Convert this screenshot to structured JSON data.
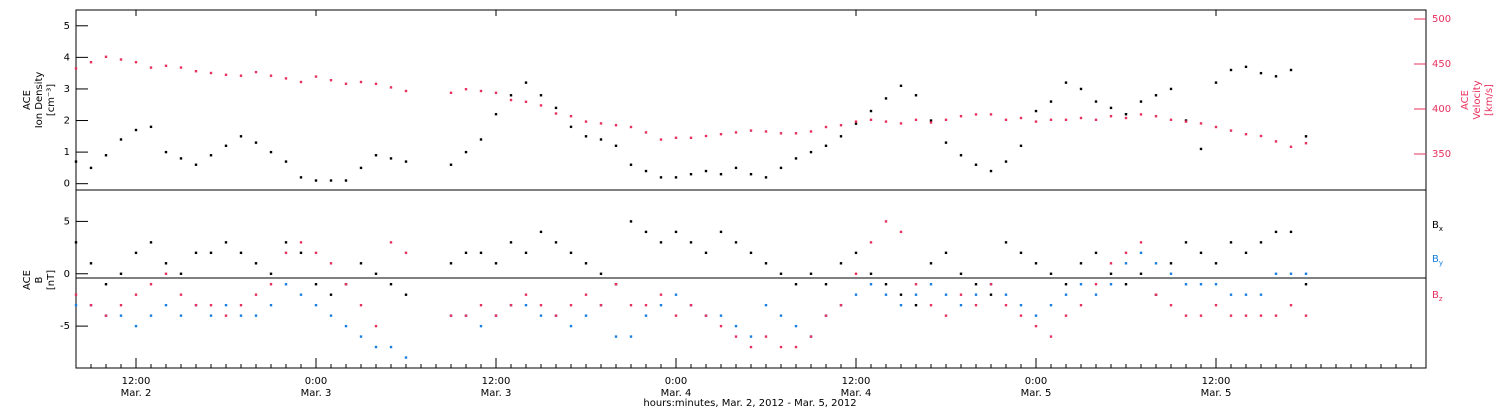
{
  "chart_data": [
    {
      "type": "scatter",
      "panel": "top",
      "ylabel_left": [
        "ACE",
        "Ion Density",
        "[cm⁻³]"
      ],
      "ylabel_right": [
        "ACE",
        "Velocity",
        "[km/s]"
      ],
      "left_ticks": [
        "0",
        "1",
        "2",
        "3",
        "4",
        "5"
      ],
      "right_ticks": [
        "350",
        "400",
        "450",
        "500"
      ],
      "ylim_left": [
        -0.2,
        5.5
      ],
      "ylim_right": [
        310,
        510
      ],
      "colors": {
        "density": "#000000",
        "velocity": "#e8305e"
      },
      "series": [
        {
          "name": "",
          "axis": "left",
          "color": "#000000",
          "x_hours": [
            0,
            1,
            2,
            3,
            4,
            5,
            6,
            7,
            8,
            9,
            10,
            11,
            12,
            13,
            14,
            15,
            16,
            17,
            18,
            19,
            20,
            21,
            22,
            23,
            24,
            25,
            26,
            27,
            28,
            29,
            30,
            31,
            32,
            33,
            34,
            35,
            36,
            37,
            38,
            39,
            40,
            41,
            42,
            43,
            44,
            45,
            46,
            47,
            48,
            49,
            50,
            51,
            52,
            53,
            54,
            55,
            56,
            57,
            58,
            59,
            60,
            61,
            62,
            63,
            64,
            65,
            66,
            67,
            68,
            69,
            70,
            71,
            72,
            73,
            74,
            75,
            76,
            77,
            78,
            79,
            80,
            81,
            82
          ],
          "values": [
            0.7,
            0.5,
            0.9,
            1.4,
            1.7,
            1.8,
            1.0,
            0.8,
            0.6,
            0.9,
            1.2,
            1.5,
            1.3,
            1.0,
            0.7,
            0.2,
            0.1,
            0.1,
            0.1,
            0.5,
            0.9,
            0.8,
            0.7,
            null,
            null,
            0.6,
            1.0,
            1.4,
            2.2,
            2.8,
            3.2,
            2.8,
            2.4,
            1.8,
            1.5,
            1.4,
            1.2,
            0.6,
            0.4,
            0.2,
            0.2,
            0.3,
            0.4,
            0.3,
            0.5,
            0.3,
            0.2,
            0.5,
            0.8,
            1.0,
            1.2,
            1.5,
            1.9,
            2.3,
            2.7,
            3.1,
            2.8,
            2.0,
            1.3,
            0.9,
            0.6,
            0.4,
            0.7,
            1.2,
            2.3,
            2.6,
            3.2,
            3.0,
            2.6,
            2.4,
            2.2,
            2.6,
            2.8,
            3.0,
            2.0,
            1.1,
            3.2,
            3.6,
            3.7,
            3.5,
            3.4,
            3.6,
            1.5
          ]
        },
        {
          "name": "",
          "axis": "right",
          "color": "#e8305e",
          "x_hours": [
            0,
            1,
            2,
            3,
            4,
            5,
            6,
            7,
            8,
            9,
            10,
            11,
            12,
            13,
            14,
            15,
            16,
            17,
            18,
            19,
            20,
            21,
            22,
            23,
            24,
            25,
            26,
            27,
            28,
            29,
            30,
            31,
            32,
            33,
            34,
            35,
            36,
            37,
            38,
            39,
            40,
            41,
            42,
            43,
            44,
            45,
            46,
            47,
            48,
            49,
            50,
            51,
            52,
            53,
            54,
            55,
            56,
            57,
            58,
            59,
            60,
            61,
            62,
            63,
            64,
            65,
            66,
            67,
            68,
            69,
            70,
            71,
            72,
            73,
            74,
            75,
            76,
            77,
            78,
            79,
            80,
            81,
            82
          ],
          "values": [
            445,
            452,
            458,
            455,
            452,
            446,
            448,
            446,
            442,
            440,
            438,
            437,
            441,
            437,
            434,
            430,
            436,
            432,
            428,
            430,
            428,
            424,
            420,
            null,
            null,
            418,
            422,
            420,
            418,
            410,
            408,
            404,
            395,
            392,
            386,
            384,
            382,
            380,
            374,
            366,
            368,
            368,
            370,
            372,
            374,
            376,
            375,
            373,
            373,
            375,
            380,
            382,
            386,
            388,
            386,
            384,
            388,
            385,
            388,
            392,
            394,
            394,
            388,
            390,
            386,
            388,
            388,
            390,
            388,
            392,
            390,
            394,
            392,
            388,
            386,
            384,
            380,
            376,
            372,
            370,
            364,
            358,
            362
          ]
        }
      ]
    },
    {
      "type": "scatter",
      "panel": "bottom",
      "ylabel_left": [
        "ACE",
        "B",
        "[nT]"
      ],
      "left_ticks": [
        "-5",
        "0",
        "5"
      ],
      "ylim_left": [
        -9,
        8
      ],
      "colors": {
        "Bx": "#000000",
        "By": "#1a7ee0",
        "Bz": "#e8305e"
      },
      "series": [
        {
          "name": "B",
          "sub": "x",
          "color": "#000000",
          "x_hours": [
            0,
            1,
            2,
            3,
            4,
            5,
            6,
            7,
            8,
            9,
            10,
            11,
            12,
            13,
            14,
            15,
            16,
            17,
            18,
            19,
            20,
            21,
            22,
            23,
            24,
            25,
            26,
            27,
            28,
            29,
            30,
            31,
            32,
            33,
            34,
            35,
            36,
            37,
            38,
            39,
            40,
            41,
            42,
            43,
            44,
            45,
            46,
            47,
            48,
            49,
            50,
            51,
            52,
            53,
            54,
            55,
            56,
            57,
            58,
            59,
            60,
            61,
            62,
            63,
            64,
            65,
            66,
            67,
            68,
            69,
            70,
            71,
            72,
            73,
            74,
            75,
            76,
            77,
            78,
            79,
            80,
            81,
            82
          ],
          "values": [
            3,
            1,
            -1,
            0,
            2,
            3,
            1,
            0,
            2,
            2,
            3,
            2,
            1,
            0,
            3,
            2,
            -1,
            -2,
            -1,
            1,
            0,
            -1,
            -2,
            null,
            null,
            1,
            2,
            2,
            1,
            3,
            2,
            4,
            3,
            2,
            1,
            0,
            -1,
            5,
            4,
            3,
            4,
            3,
            2,
            4,
            3,
            2,
            1,
            0,
            -1,
            0,
            -1,
            1,
            2,
            0,
            -1,
            -2,
            -3,
            1,
            2,
            0,
            -1,
            -2,
            3,
            2,
            1,
            0,
            -1,
            1,
            2,
            0,
            -1,
            0,
            -2,
            1,
            3,
            2,
            1,
            3,
            2,
            3,
            4,
            4,
            -1
          ]
        },
        {
          "name": "B",
          "sub": "y",
          "color": "#1a7ee0",
          "x_hours": [
            0,
            1,
            2,
            3,
            4,
            5,
            6,
            7,
            8,
            9,
            10,
            11,
            12,
            13,
            14,
            15,
            16,
            17,
            18,
            19,
            20,
            21,
            22,
            23,
            24,
            25,
            26,
            27,
            28,
            29,
            30,
            31,
            32,
            33,
            34,
            35,
            36,
            37,
            38,
            39,
            40,
            41,
            42,
            43,
            44,
            45,
            46,
            47,
            48,
            49,
            50,
            51,
            52,
            53,
            54,
            55,
            56,
            57,
            58,
            59,
            60,
            61,
            62,
            63,
            64,
            65,
            66,
            67,
            68,
            69,
            70,
            71,
            72,
            73,
            74,
            75,
            76,
            77,
            78,
            79,
            80,
            81,
            82
          ],
          "values": [
            -3,
            -3,
            -4,
            -4,
            -5,
            -4,
            -3,
            -4,
            -3,
            -4,
            -3,
            -4,
            -4,
            -3,
            -1,
            -2,
            -3,
            -4,
            -5,
            -6,
            -7,
            -7,
            -8,
            null,
            null,
            -4,
            -4,
            -5,
            -4,
            -3,
            -3,
            -4,
            -4,
            -5,
            -4,
            -3,
            -6,
            -6,
            -4,
            -3,
            -2,
            -3,
            -4,
            -4,
            -5,
            -6,
            -3,
            -4,
            -5,
            -6,
            -4,
            -3,
            -2,
            -1,
            -2,
            -3,
            -2,
            -1,
            -2,
            -3,
            -2,
            -1,
            -2,
            -3,
            -4,
            -3,
            -2,
            -1,
            -2,
            -1,
            1,
            2,
            1,
            0,
            -1,
            -1,
            -1,
            -2,
            -2,
            -2,
            0,
            0,
            0
          ]
        },
        {
          "name": "B",
          "sub": "z",
          "color": "#e8305e",
          "x_hours": [
            0,
            1,
            2,
            3,
            4,
            5,
            6,
            7,
            8,
            9,
            10,
            11,
            12,
            13,
            14,
            15,
            16,
            17,
            18,
            19,
            20,
            21,
            22,
            23,
            24,
            25,
            26,
            27,
            28,
            29,
            30,
            31,
            32,
            33,
            34,
            35,
            36,
            37,
            38,
            39,
            40,
            41,
            42,
            43,
            44,
            45,
            46,
            47,
            48,
            49,
            50,
            51,
            52,
            53,
            54,
            55,
            56,
            57,
            58,
            59,
            60,
            61,
            62,
            63,
            64,
            65,
            66,
            67,
            68,
            69,
            70,
            71,
            72,
            73,
            74,
            75,
            76,
            77,
            78,
            79,
            80,
            81,
            82
          ],
          "values": [
            -2,
            -3,
            -4,
            -3,
            -2,
            -1,
            0,
            -2,
            -3,
            -3,
            -4,
            -3,
            -2,
            -1,
            2,
            3,
            2,
            1,
            -1,
            -3,
            -5,
            3,
            2,
            null,
            null,
            -4,
            -4,
            -3,
            -4,
            -3,
            -2,
            -3,
            -4,
            -3,
            -2,
            -3,
            -1,
            -3,
            -3,
            -2,
            -4,
            -3,
            -4,
            -5,
            -6,
            -7,
            -6,
            -7,
            -7,
            -6,
            -4,
            -3,
            0,
            3,
            5,
            4,
            -1,
            -3,
            -4,
            -2,
            -3,
            -1,
            -3,
            -4,
            -5,
            -6,
            -4,
            -3,
            -1,
            1,
            2,
            3,
            -2,
            -3,
            -4,
            -4,
            -3,
            -4,
            -4,
            -4,
            -4,
            -3,
            -4
          ]
        }
      ]
    }
  ],
  "x_axis": {
    "title": "hours:minutes, Mar. 2, 2012 - Mar. 5, 2012",
    "range_hours": [
      0,
      90
    ],
    "ticks": [
      {
        "h": 4,
        "label": "12:00",
        "date": "Mar. 2"
      },
      {
        "h": 16,
        "label": "0:00",
        "date": "Mar. 3"
      },
      {
        "h": 28,
        "label": "12:00",
        "date": "Mar. 3"
      },
      {
        "h": 40,
        "label": "0:00",
        "date": "Mar. 4"
      },
      {
        "h": 52,
        "label": "12:00",
        "date": "Mar. 4"
      },
      {
        "h": 64,
        "label": "0:00",
        "date": "Mar. 5"
      },
      {
        "h": 76,
        "label": "12:00",
        "date": "Mar. 5"
      }
    ]
  }
}
